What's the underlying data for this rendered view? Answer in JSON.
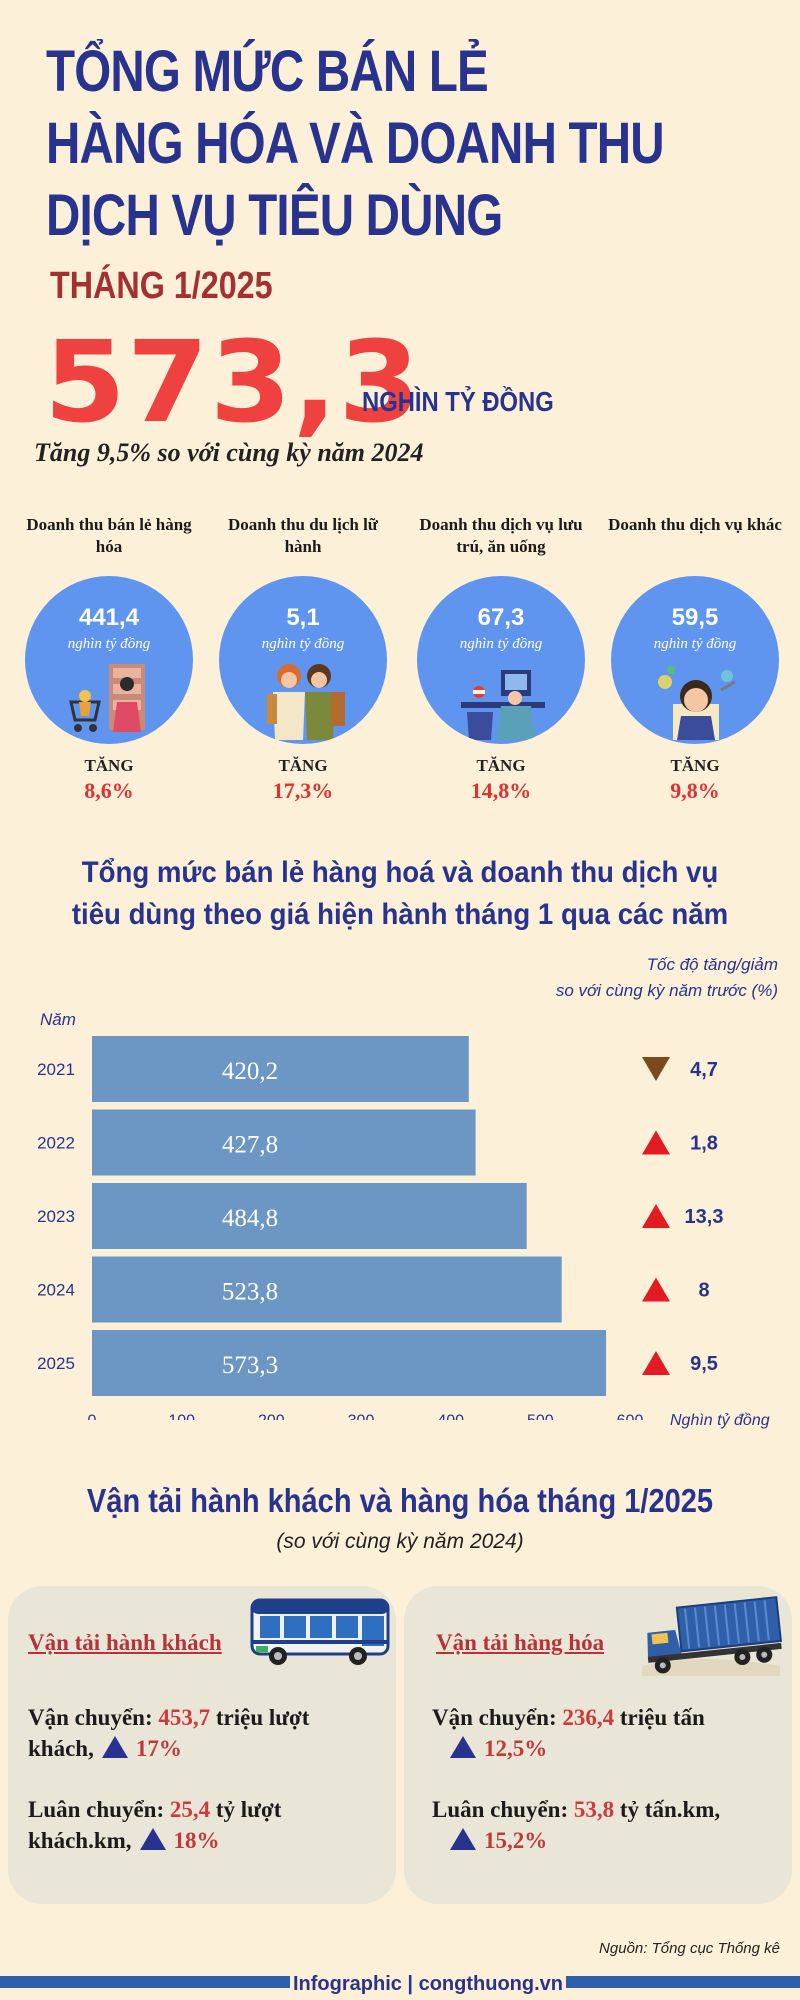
{
  "header": {
    "title_lines": [
      "TỔNG MỨC BÁN LẺ",
      "HÀNG HÓA VÀ DOANH THU",
      "DỊCH VỤ TIÊU DÙNG"
    ],
    "subtitle": "THÁNG 1/2025",
    "big_value": "573,3",
    "big_unit": "NGHÌN TỶ ĐỒNG",
    "growth": "Tăng 9,5% so với cùng kỳ năm 2024"
  },
  "categories": [
    {
      "title": "Doanh thu bán lẻ hàng hóa",
      "value": "441,4",
      "unit": "nghìn tỷ đồng",
      "inc_label": "TĂNG",
      "pct": "8,6%"
    },
    {
      "title": "Doanh thu du lịch lữ hành",
      "value": "5,1",
      "unit": "nghìn tỷ đồng",
      "inc_label": "TĂNG",
      "pct": "17,3%"
    },
    {
      "title": "Doanh thu dịch vụ lưu trú, ăn uống",
      "value": "67,3",
      "unit": "nghìn tỷ đồng",
      "inc_label": "TĂNG",
      "pct": "14,8%"
    },
    {
      "title": "Doanh thu dịch vụ khác",
      "value": "59,5",
      "unit": "nghìn tỷ đồng",
      "inc_label": "TĂNG",
      "pct": "9,8%"
    }
  ],
  "chart_data": {
    "type": "bar",
    "orientation": "horizontal",
    "title_lines": [
      "Tổng mức bán lẻ hàng hoá và doanh thu dịch vụ",
      "tiêu dùng theo giá hiện hành tháng 1 qua các năm"
    ],
    "rate_note_lines": [
      "Tốc độ tăng/giảm",
      "so với cùng kỳ năm trước (%)"
    ],
    "ylabel": "Năm",
    "xlabel": "Nghìn tỷ đồng",
    "categories": [
      "2021",
      "2022",
      "2023",
      "2024",
      "2025"
    ],
    "values": [
      420.2,
      427.8,
      484.8,
      523.8,
      573.3
    ],
    "value_labels": [
      "420,2",
      "427,8",
      "484,8",
      "523,8",
      "573,3"
    ],
    "rates": [
      {
        "label": "4,7",
        "direction": "down"
      },
      {
        "label": "1,8",
        "direction": "up"
      },
      {
        "label": "13,3",
        "direction": "up"
      },
      {
        "label": "8",
        "direction": "up"
      },
      {
        "label": "9,5",
        "direction": "up"
      }
    ],
    "xticks": [
      0,
      100,
      200,
      300,
      400,
      500,
      600
    ],
    "xlim": [
      0,
      600
    ],
    "bar_color": "#6c97c4",
    "up_color": "#e31b23",
    "down_color": "#7b4a1e"
  },
  "transport": {
    "title": "Vận tải hành khách và hàng hóa tháng 1/2025",
    "subtitle": "(so với cùng kỳ năm 2024)",
    "passenger": {
      "heading": "Vận tải hành khách",
      "line1_label": "Vận chuyển: ",
      "line1_value": "453,7",
      "line1_unit_a": " triệu lượt",
      "line1_unit_b": "khách,",
      "line1_pct": "17%",
      "line2_label": "Luân chuyển: ",
      "line2_value": "25,4",
      "line2_unit_a": " tỷ lượt",
      "line2_unit_b": "khách.km,",
      "line2_pct": "18%"
    },
    "cargo": {
      "heading": "Vận tải hàng hóa",
      "line1_label": "Vận chuyển: ",
      "line1_value": "236,4",
      "line1_unit": " triệu tấn",
      "line1_pct": "12,5%",
      "line2_label": "Luân chuyển: ",
      "line2_value": "53,8",
      "line2_unit": " tỷ tấn.km,",
      "line2_pct": "15,2%"
    }
  },
  "source": "Nguồn: Tổng cục Thống kê",
  "footer": "Infographic | congthuong.vn"
}
